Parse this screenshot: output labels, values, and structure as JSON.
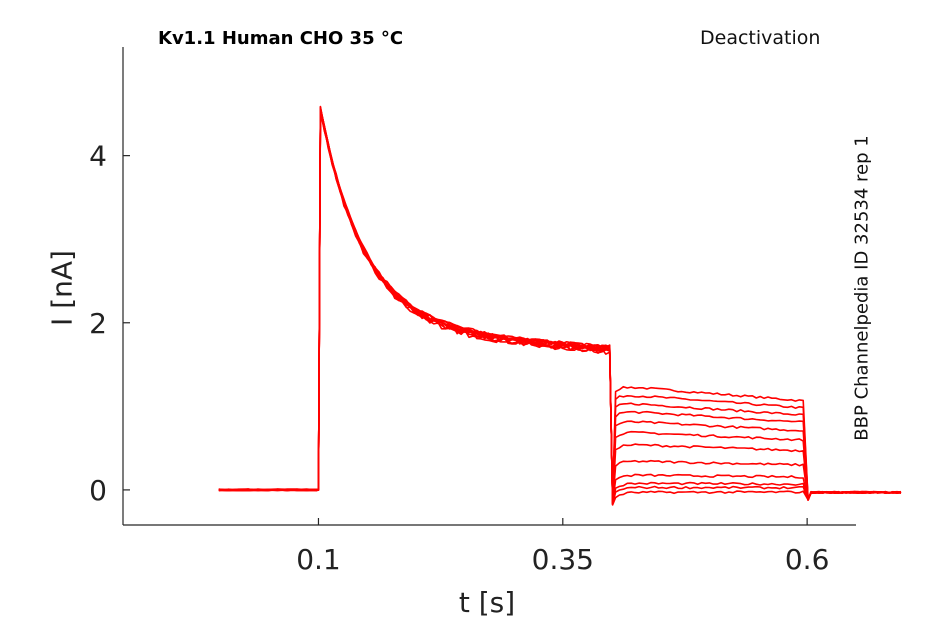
{
  "header": {
    "title": "Kv1.1  Human  CHO  35 °C",
    "protocol": "Deactivation",
    "side_label": "BBP Channelpedia ID 32534 rep 1"
  },
  "chart_data": {
    "type": "line",
    "xlabel": "t [s]",
    "ylabel": "I [nA]",
    "xlim": [
      -0.1,
      0.65
    ],
    "ylim": [
      -0.42,
      5.3
    ],
    "xticks": [
      0.1,
      0.35,
      0.6
    ],
    "xtick_labels": [
      "0.1",
      "0.35",
      "0.6"
    ],
    "yticks": [
      0,
      2,
      4
    ],
    "ytick_labels": [
      "0",
      "2",
      "4"
    ],
    "grid": false,
    "legend": "none",
    "color": "#ff0000",
    "protocol_times": {
      "baseline_start": -0.002,
      "step_on": 0.1,
      "step_off": 0.4,
      "tail_off": 0.6,
      "end": 0.698
    },
    "peak_current": 4.7,
    "current_at_step_end": 1.68,
    "tail_currents": [
      1.25,
      1.15,
      1.05,
      0.95,
      0.83,
      0.7,
      0.55,
      0.35,
      0.18,
      0.08,
      0.03,
      -0.03
    ],
    "post_tail_current": -0.03
  }
}
